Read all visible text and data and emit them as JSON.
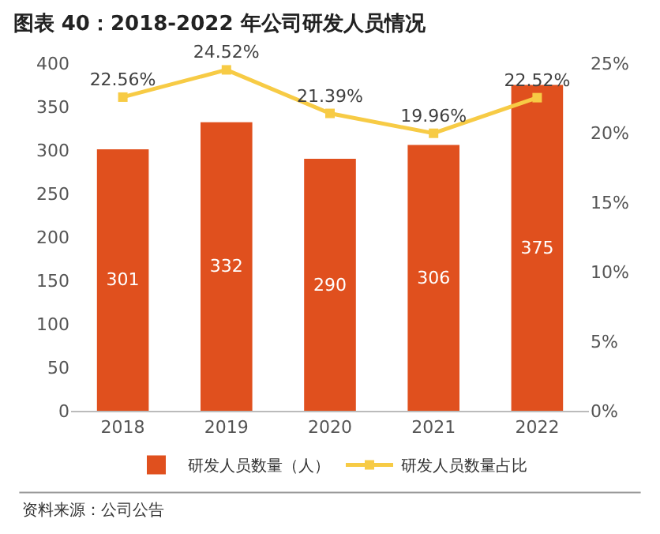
{
  "chart_data": {
    "type": "bar",
    "title": "图表 40：2018-2022 年公司研发人员情况",
    "categories": [
      "2018",
      "2019",
      "2020",
      "2021",
      "2022"
    ],
    "series": [
      {
        "name": "研发人员数量（人）",
        "color": "#e0501e",
        "values": [
          301,
          332,
          290,
          306,
          375
        ],
        "value_labels": [
          "301",
          "332",
          "290",
          "306",
          "375"
        ]
      },
      {
        "name": "研发人员数量占比",
        "type": "line",
        "axis": "y2",
        "color": "#f7cb45",
        "marker": "square",
        "values": [
          22.56,
          24.52,
          21.39,
          19.96,
          22.52
        ],
        "value_labels": [
          "22.56%",
          "24.52%",
          "21.39%",
          "19.96%",
          "22.52%"
        ]
      }
    ],
    "ylim": [
      0,
      400
    ],
    "yticks": [
      0,
      50,
      100,
      150,
      200,
      250,
      300,
      350,
      400
    ],
    "y2lim": [
      0,
      25
    ],
    "y2ticks": [
      {
        "value": 0,
        "label": "0%"
      },
      {
        "value": 5,
        "label": "5%"
      },
      {
        "value": 10,
        "label": "10%"
      },
      {
        "value": 15,
        "label": "15%"
      },
      {
        "value": 20,
        "label": "20%"
      },
      {
        "value": 25,
        "label": "25%"
      }
    ],
    "grid": false,
    "legend": "bottom",
    "annotations": [
      "资料来源：公司公告"
    ]
  }
}
